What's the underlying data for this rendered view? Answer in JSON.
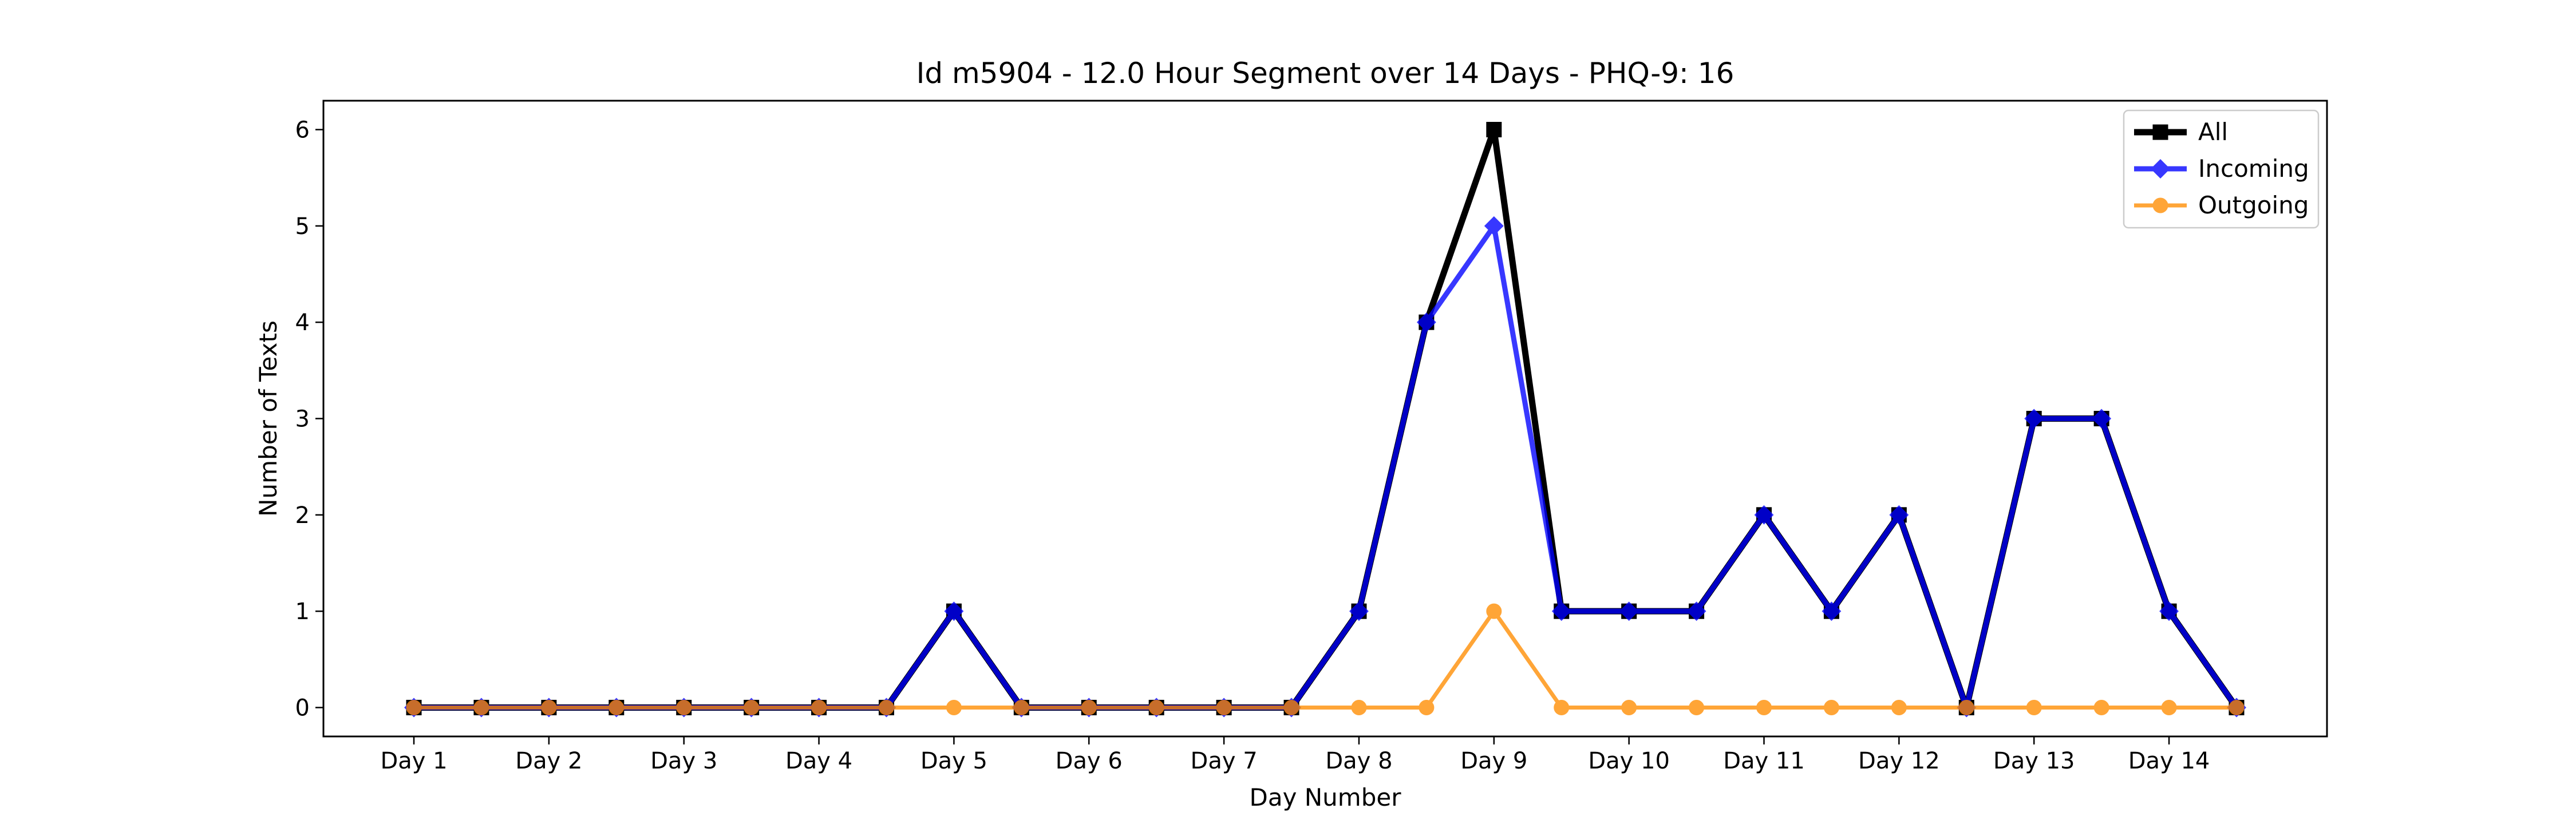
{
  "chart_data": {
    "type": "line",
    "title": "Id m5904 - 12.0 Hour Segment over 14 Days - PHQ-9: 16",
    "xlabel": "Day Number",
    "ylabel": "Number of Texts",
    "categories": [
      "Day 1",
      "Day 2",
      "Day 3",
      "Day 4",
      "Day 5",
      "Day 6",
      "Day 7",
      "Day 8",
      "Day 9",
      "Day 10",
      "Day 11",
      "Day 12",
      "Day 13",
      "Day 14"
    ],
    "x": [
      1,
      1.5,
      2,
      2.5,
      3,
      3.5,
      4,
      4.5,
      5,
      5.5,
      6,
      6.5,
      7,
      7.5,
      8,
      8.5,
      9,
      9.5,
      10,
      10.5,
      11,
      11.5,
      12,
      12.5,
      13,
      13.5,
      14,
      14.5
    ],
    "xlim": [
      0.33,
      15.17
    ],
    "ylim": [
      -0.3,
      6.3
    ],
    "yticks": [
      0,
      1,
      2,
      3,
      4,
      5,
      6
    ],
    "grid": false,
    "legend_position": "top-right",
    "series": [
      {
        "name": "All",
        "color": "#000000",
        "marker": "square",
        "values": [
          0,
          0,
          0,
          0,
          0,
          0,
          0,
          0,
          1,
          0,
          0,
          0,
          0,
          0,
          1,
          4,
          6,
          1,
          1,
          1,
          2,
          1,
          2,
          0,
          3,
          3,
          1,
          0
        ]
      },
      {
        "name": "Incoming",
        "color": "#0000ff",
        "marker": "diamond",
        "values": [
          0,
          0,
          0,
          0,
          0,
          0,
          0,
          0,
          1,
          0,
          0,
          0,
          0,
          0,
          1,
          4,
          5,
          1,
          1,
          1,
          2,
          1,
          2,
          0,
          3,
          3,
          1,
          0
        ]
      },
      {
        "name": "Outgoing",
        "color": "#ff8c00",
        "marker": "circle",
        "values": [
          0,
          0,
          0,
          0,
          0,
          0,
          0,
          0,
          0,
          0,
          0,
          0,
          0,
          0,
          0,
          0,
          1,
          0,
          0,
          0,
          0,
          0,
          0,
          0,
          0,
          0,
          0,
          0
        ]
      }
    ]
  }
}
